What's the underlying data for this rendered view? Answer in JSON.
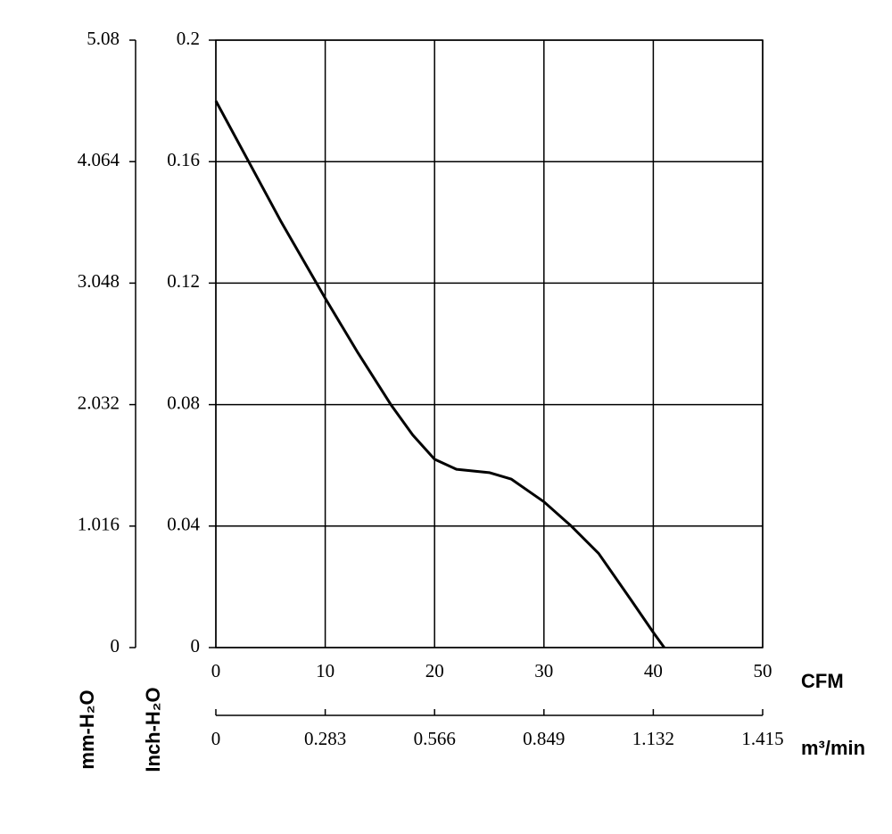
{
  "chart_data": {
    "type": "line",
    "xlabel": "CFM",
    "x2label": "m³/min",
    "ylabel": "Inch-H₂O",
    "y2label": "mm-H₂O",
    "x": [
      0,
      3,
      6,
      10,
      13,
      16,
      18,
      20,
      22,
      25,
      27,
      29,
      30,
      32.5,
      35,
      38,
      40,
      41
    ],
    "series": [
      {
        "color": "#000000",
        "values": [
          0.18,
          0.16,
          0.14,
          0.115,
          0.097,
          0.08,
          0.07,
          0.062,
          0.0587,
          0.0576,
          0.0555,
          0.0505,
          0.048,
          0.04,
          0.031,
          0.0155,
          0.005,
          0
        ]
      }
    ],
    "xlim": [
      0,
      50
    ],
    "xticks": [
      0,
      10,
      20,
      30,
      40,
      50
    ],
    "x2lim": [
      0,
      1.415
    ],
    "x2ticks": [
      0,
      0.283,
      0.566,
      0.849,
      1.132,
      1.415
    ],
    "ylim": [
      0,
      0.2
    ],
    "yticks": [
      0,
      0.04,
      0.08,
      0.12,
      0.16,
      0.2
    ],
    "y2lim": [
      0,
      5.08
    ],
    "y2ticks": [
      0,
      1.016,
      2.032,
      3.048,
      4.064,
      5.08
    ],
    "grid": true
  }
}
